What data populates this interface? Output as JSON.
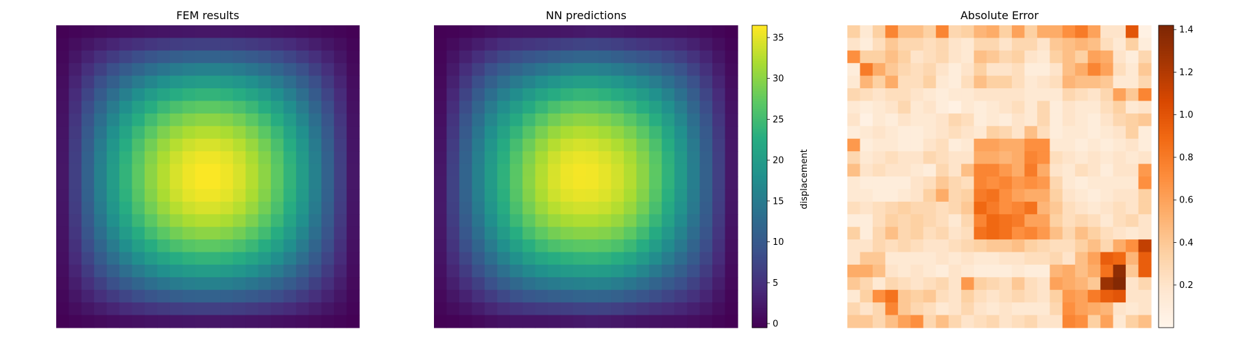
{
  "chart_data": [
    {
      "type": "heatmap",
      "title": "FEM results",
      "grid_size": [
        24,
        24
      ],
      "field": "sin(pi*i/23) * sin(pi*j/23) peak at center",
      "value_range": [
        0,
        36
      ],
      "colormap": "viridis",
      "axes_visible": false,
      "colorbar": null
    },
    {
      "type": "heatmap",
      "title": "NN predictions",
      "grid_size": [
        24,
        24
      ],
      "value_range": [
        0,
        36
      ],
      "colormap": "viridis",
      "axes_visible": false,
      "colorbar": {
        "label": "displacement",
        "ticks": [
          0,
          5,
          10,
          15,
          20,
          25,
          30,
          35
        ],
        "range": [
          -0.5,
          36.5
        ]
      }
    },
    {
      "type": "heatmap",
      "title": "Absolute Error",
      "grid_size": [
        24,
        24
      ],
      "value_range": [
        0,
        1.42
      ],
      "colormap": "oranges",
      "axes_visible": false,
      "colorbar": {
        "label": "",
        "ticks": [
          0.2,
          0.4,
          0.6,
          0.8,
          1.0,
          1.2,
          1.4
        ],
        "tick_labels": [
          "0.2",
          "0.4",
          "0.6",
          "0.8",
          "1.0",
          "1.2",
          "1.4"
        ],
        "range": [
          0.0,
          1.42
        ]
      },
      "error_grid": [
        [
          0.35,
          0.15,
          0.35,
          0.75,
          0.45,
          0.45,
          0.35,
          0.75,
          0.3,
          0.35,
          0.5,
          0.55,
          0.35,
          0.6,
          0.35,
          0.55,
          0.55,
          0.7,
          0.8,
          0.6,
          0.2,
          0.2,
          1.0,
          0.05
        ],
        [
          0.2,
          0.1,
          0.25,
          0.4,
          0.3,
          0.3,
          0.25,
          0.3,
          0.2,
          0.15,
          0.3,
          0.3,
          0.2,
          0.3,
          0.3,
          0.2,
          0.4,
          0.45,
          0.5,
          0.45,
          0.25,
          0.15,
          0.35,
          0.1
        ],
        [
          0.7,
          0.35,
          0.35,
          0.45,
          0.35,
          0.2,
          0.25,
          0.3,
          0.2,
          0.15,
          0.45,
          0.4,
          0.3,
          0.35,
          0.2,
          0.15,
          0.35,
          0.45,
          0.35,
          0.6,
          0.55,
          0.2,
          0.1,
          0.3
        ],
        [
          0.1,
          0.8,
          0.55,
          0.4,
          0.3,
          0.25,
          0.3,
          0.2,
          0.1,
          0.2,
          0.35,
          0.2,
          0.2,
          0.25,
          0.1,
          0.1,
          0.2,
          0.45,
          0.55,
          0.75,
          0.6,
          0.25,
          0.15,
          0.4
        ],
        [
          0.15,
          0.5,
          0.35,
          0.55,
          0.25,
          0.25,
          0.35,
          0.15,
          0.1,
          0.25,
          0.45,
          0.35,
          0.35,
          0.25,
          0.15,
          0.2,
          0.25,
          0.5,
          0.45,
          0.45,
          0.4,
          0.15,
          0.15,
          0.3
        ],
        [
          0.3,
          0.25,
          0.2,
          0.25,
          0.25,
          0.2,
          0.15,
          0.1,
          0.15,
          0.15,
          0.2,
          0.2,
          0.2,
          0.2,
          0.15,
          0.15,
          0.15,
          0.3,
          0.25,
          0.2,
          0.3,
          0.6,
          0.4,
          0.75
        ],
        [
          0.15,
          0.1,
          0.15,
          0.2,
          0.3,
          0.15,
          0.2,
          0.1,
          0.05,
          0.15,
          0.1,
          0.15,
          0.2,
          0.25,
          0.15,
          0.3,
          0.1,
          0.2,
          0.15,
          0.15,
          0.25,
          0.35,
          0.15,
          0.2
        ],
        [
          0.2,
          0.05,
          0.15,
          0.1,
          0.2,
          0.15,
          0.15,
          0.2,
          0.3,
          0.25,
          0.1,
          0.15,
          0.1,
          0.2,
          0.15,
          0.3,
          0.1,
          0.2,
          0.15,
          0.1,
          0.2,
          0.3,
          0.35,
          0.4
        ],
        [
          0.1,
          0.15,
          0.2,
          0.15,
          0.1,
          0.1,
          0.15,
          0.2,
          0.25,
          0.2,
          0.15,
          0.35,
          0.3,
          0.2,
          0.45,
          0.25,
          0.1,
          0.15,
          0.15,
          0.1,
          0.15,
          0.2,
          0.35,
          0.1
        ],
        [
          0.65,
          0.1,
          0.15,
          0.15,
          0.1,
          0.1,
          0.2,
          0.25,
          0.1,
          0.15,
          0.6,
          0.6,
          0.55,
          0.55,
          0.7,
          0.7,
          0.15,
          0.15,
          0.1,
          0.15,
          0.1,
          0.15,
          0.2,
          0.1
        ],
        [
          0.3,
          0.15,
          0.2,
          0.25,
          0.2,
          0.2,
          0.3,
          0.25,
          0.2,
          0.2,
          0.55,
          0.55,
          0.5,
          0.55,
          0.75,
          0.7,
          0.25,
          0.2,
          0.15,
          0.2,
          0.15,
          0.2,
          0.15,
          0.2
        ],
        [
          0.45,
          0.2,
          0.25,
          0.2,
          0.2,
          0.15,
          0.1,
          0.3,
          0.2,
          0.45,
          0.75,
          0.75,
          0.65,
          0.55,
          0.8,
          0.55,
          0.2,
          0.15,
          0.25,
          0.2,
          0.1,
          0.2,
          0.2,
          0.65
        ],
        [
          0.15,
          0.1,
          0.1,
          0.1,
          0.1,
          0.2,
          0.25,
          0.4,
          0.3,
          0.25,
          0.75,
          0.7,
          0.75,
          0.65,
          0.7,
          0.65,
          0.3,
          0.15,
          0.1,
          0.15,
          0.15,
          0.15,
          0.15,
          0.7
        ],
        [
          0.15,
          0.15,
          0.1,
          0.1,
          0.15,
          0.2,
          0.35,
          0.55,
          0.3,
          0.35,
          0.8,
          0.85,
          0.7,
          0.6,
          0.55,
          0.55,
          0.35,
          0.2,
          0.15,
          0.1,
          0.15,
          0.2,
          0.2,
          0.35
        ],
        [
          0.25,
          0.2,
          0.25,
          0.3,
          0.35,
          0.3,
          0.3,
          0.25,
          0.3,
          0.4,
          0.9,
          0.8,
          0.7,
          0.75,
          0.85,
          0.5,
          0.4,
          0.25,
          0.2,
          0.15,
          0.2,
          0.25,
          0.2,
          0.35
        ],
        [
          0.1,
          0.1,
          0.25,
          0.35,
          0.3,
          0.35,
          0.3,
          0.25,
          0.15,
          0.3,
          0.75,
          0.9,
          0.85,
          0.8,
          0.6,
          0.6,
          0.35,
          0.25,
          0.3,
          0.25,
          0.15,
          0.25,
          0.3,
          0.2
        ],
        [
          0.35,
          0.1,
          0.3,
          0.45,
          0.3,
          0.35,
          0.25,
          0.3,
          0.2,
          0.25,
          0.85,
          0.9,
          0.85,
          0.7,
          0.75,
          0.65,
          0.45,
          0.3,
          0.45,
          0.35,
          0.25,
          0.2,
          0.15,
          0.2
        ],
        [
          0.2,
          0.2,
          0.3,
          0.25,
          0.3,
          0.25,
          0.2,
          0.2,
          0.25,
          0.3,
          0.35,
          0.4,
          0.4,
          0.45,
          0.35,
          0.3,
          0.25,
          0.25,
          0.35,
          0.45,
          0.3,
          0.55,
          0.7,
          1.15
        ],
        [
          0.2,
          0.4,
          0.4,
          0.15,
          0.15,
          0.15,
          0.15,
          0.2,
          0.15,
          0.2,
          0.15,
          0.15,
          0.2,
          0.2,
          0.25,
          0.25,
          0.3,
          0.2,
          0.45,
          0.6,
          0.95,
          0.9,
          0.5,
          0.95
        ],
        [
          0.55,
          0.55,
          0.45,
          0.2,
          0.15,
          0.2,
          0.15,
          0.1,
          0.2,
          0.15,
          0.1,
          0.1,
          0.1,
          0.15,
          0.1,
          0.1,
          0.5,
          0.55,
          0.45,
          0.55,
          0.85,
          1.35,
          0.4,
          0.95
        ],
        [
          0.4,
          0.3,
          0.15,
          0.3,
          0.25,
          0.2,
          0.25,
          0.3,
          0.2,
          0.65,
          0.35,
          0.3,
          0.25,
          0.4,
          0.25,
          0.2,
          0.6,
          0.55,
          0.5,
          0.4,
          1.3,
          1.4,
          0.2,
          0.3
        ],
        [
          0.15,
          0.35,
          0.7,
          0.85,
          0.4,
          0.35,
          0.4,
          0.25,
          0.2,
          0.35,
          0.25,
          0.2,
          0.25,
          0.3,
          0.25,
          0.2,
          0.35,
          0.65,
          0.6,
          0.8,
          0.95,
          1.0,
          0.2,
          0.2
        ],
        [
          0.3,
          0.2,
          0.3,
          0.75,
          0.4,
          0.3,
          0.25,
          0.15,
          0.2,
          0.3,
          0.2,
          0.15,
          0.2,
          0.15,
          0.15,
          0.15,
          0.3,
          0.7,
          0.6,
          0.55,
          0.5,
          0.2,
          0.15,
          0.2
        ],
        [
          0.4,
          0.4,
          0.3,
          0.45,
          0.6,
          0.7,
          0.3,
          0.45,
          0.3,
          0.2,
          0.25,
          0.3,
          0.2,
          0.25,
          0.3,
          0.2,
          0.2,
          0.75,
          0.7,
          0.35,
          0.6,
          0.15,
          0.35,
          0.45
        ]
      ]
    }
  ]
}
